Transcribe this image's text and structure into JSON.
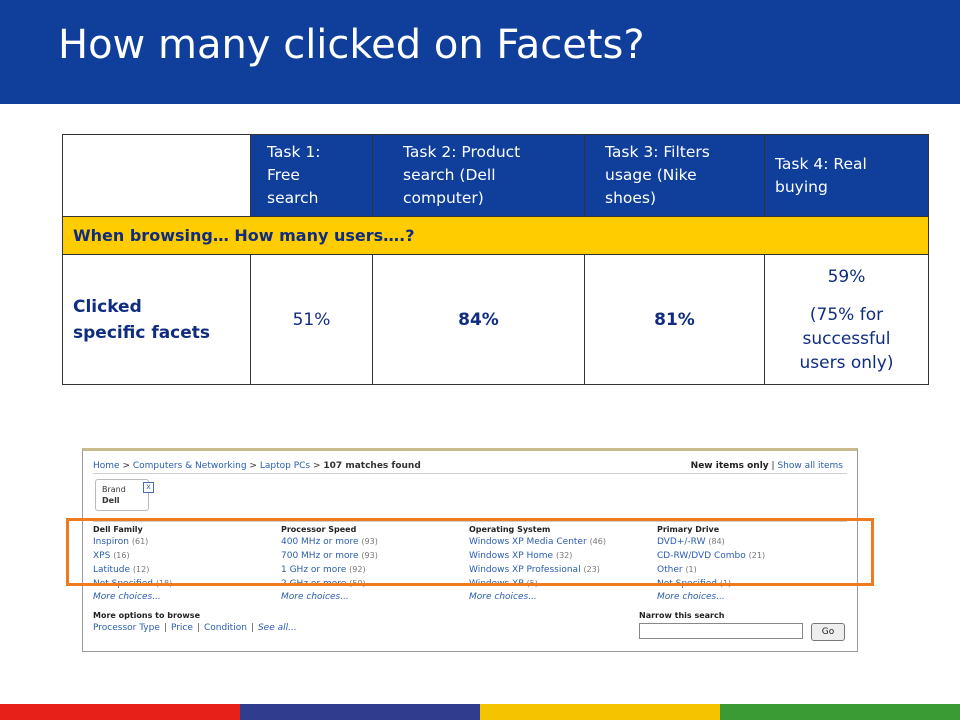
{
  "slide": {
    "title": "How many clicked on Facets?"
  },
  "table": {
    "headers": [
      "Task 1: Free search",
      "Task 2: Product search (Dell computer)",
      "Task 3: Filters usage (Nike shoes)",
      "Task 4: Real buying"
    ],
    "header_lines": [
      [
        "Task 1:",
        "Free",
        "search"
      ],
      [
        "Task 2: Product",
        "search (Dell",
        "computer)"
      ],
      [
        "Task 3: Filters",
        "usage (Nike",
        "shoes)"
      ],
      [
        "Task 4: Real",
        "buying"
      ]
    ],
    "band_text": "When browsing… How many users….?",
    "row_label_lines": [
      "Clicked",
      "specific facets"
    ],
    "values": [
      "51%",
      "84%",
      "81%"
    ],
    "task4_lines": [
      "59%",
      "(75% for",
      "successful",
      "users only)"
    ]
  },
  "screenshot": {
    "breadcrumb": {
      "home": "Home",
      "sep": ">",
      "computers": "Computers & Networking",
      "laptops": "Laptop PCs",
      "matches": "107 matches found"
    },
    "new_items_label": "New items only",
    "show_all_label": "Show all items",
    "brand_box": {
      "label": "Brand",
      "value": "Dell",
      "close": "x"
    },
    "facets": [
      {
        "heading": "Dell Family",
        "items": [
          {
            "label": "Inspiron",
            "count": "(61)"
          },
          {
            "label": "XPS",
            "count": "(16)"
          },
          {
            "label": "Latitude",
            "count": "(12)"
          },
          {
            "label": "Not Specified",
            "count": "(18)"
          }
        ],
        "more": "More choices..."
      },
      {
        "heading": "Processor Speed",
        "items": [
          {
            "label": "400 MHz or more",
            "count": "(93)"
          },
          {
            "label": "700 MHz or more",
            "count": "(93)"
          },
          {
            "label": "1 GHz or more",
            "count": "(92)"
          },
          {
            "label": "2 GHz or more",
            "count": "(50)"
          }
        ],
        "more": "More choices..."
      },
      {
        "heading": "Operating System",
        "items": [
          {
            "label": "Windows XP Media Center",
            "count": "(46)"
          },
          {
            "label": "Windows XP Home",
            "count": "(32)"
          },
          {
            "label": "Windows XP Professional",
            "count": "(23)"
          },
          {
            "label": "Windows XP",
            "count": "(5)"
          }
        ],
        "more": "More choices..."
      },
      {
        "heading": "Primary Drive",
        "items": [
          {
            "label": "DVD+/-RW",
            "count": "(84)"
          },
          {
            "label": "CD-RW/DVD Combo",
            "count": "(21)"
          },
          {
            "label": "Other",
            "count": "(1)"
          },
          {
            "label": "Not Specified",
            "count": "(1)"
          }
        ],
        "more": "More choices..."
      }
    ],
    "more_options_label": "More options to browse",
    "browse_links": [
      "Processor Type",
      "Price",
      "Condition",
      "See all..."
    ],
    "narrow_label": "Narrow this search",
    "go_label": "Go"
  },
  "colors": {
    "title_bar": "#0f3f9a",
    "band": "#ffcc00",
    "highlight": "#f07a1e",
    "footer": [
      "#e8201a",
      "#2f3d8f",
      "#f5c400",
      "#3a9a34"
    ]
  }
}
